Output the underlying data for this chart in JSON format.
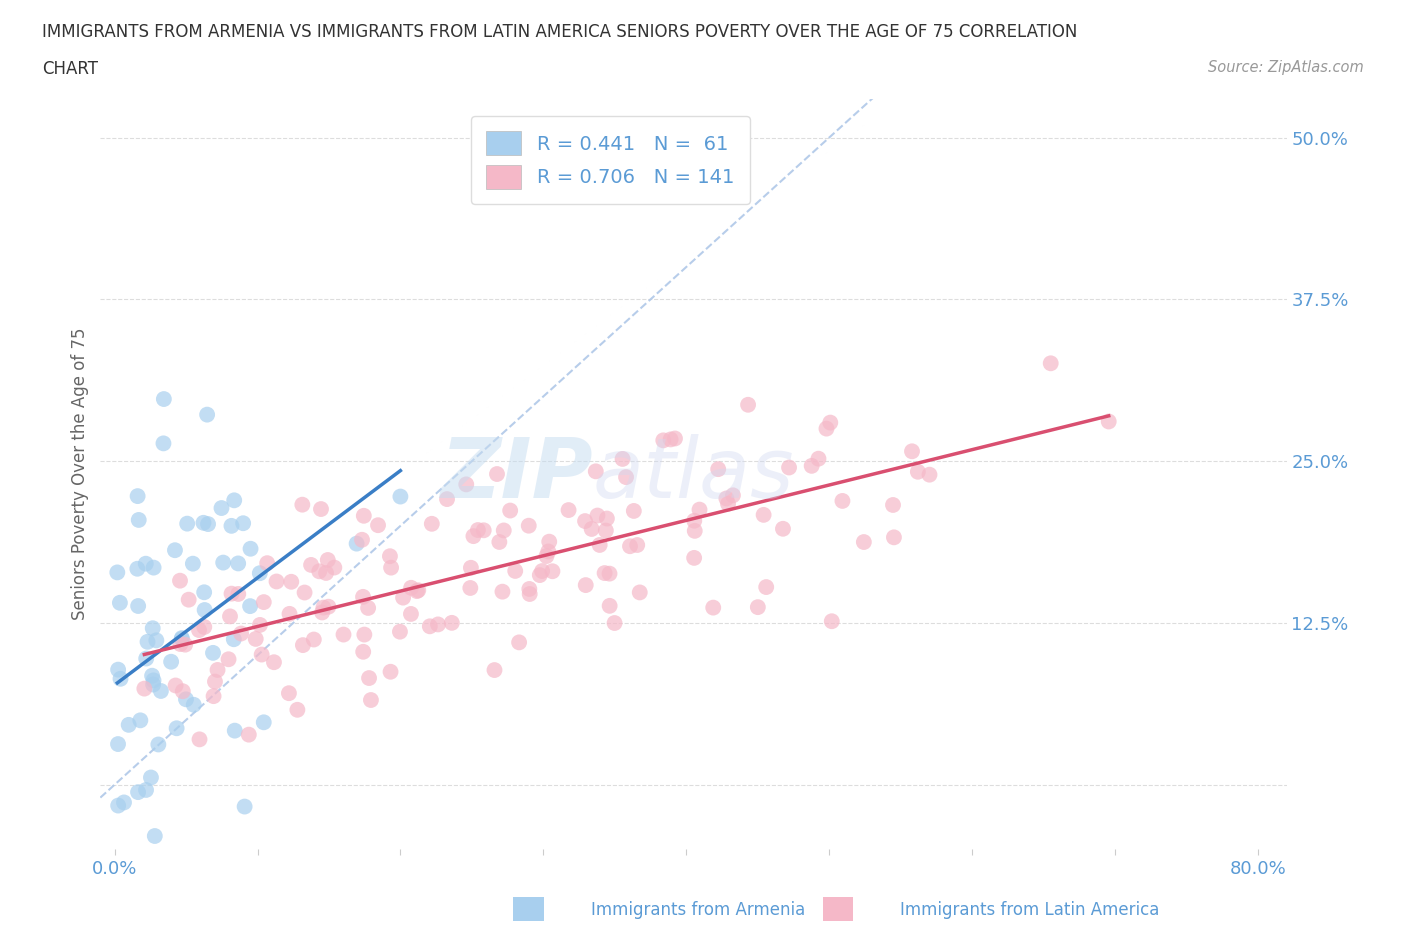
{
  "title_line1": "IMMIGRANTS FROM ARMENIA VS IMMIGRANTS FROM LATIN AMERICA SENIORS POVERTY OVER THE AGE OF 75 CORRELATION",
  "title_line2": "CHART",
  "source_text": "Source: ZipAtlas.com",
  "ylabel": "Seniors Poverty Over the Age of 75",
  "legend_entries": [
    {
      "label": "Immigrants from Armenia",
      "R": "0.441",
      "N": "61",
      "color": "#A8CFEE"
    },
    {
      "label": "Immigrants from Latin America",
      "R": "0.706",
      "N": "141",
      "color": "#F5B8C8"
    }
  ],
  "xmin": -0.01,
  "xmax": 0.82,
  "ymin": -0.05,
  "ymax": 0.53,
  "yticks": [
    0.0,
    0.125,
    0.25,
    0.375,
    0.5
  ],
  "ytick_labels": [
    "",
    "12.5%",
    "25.0%",
    "37.5%",
    "50.0%"
  ],
  "xticks": [
    0.0,
    0.1,
    0.2,
    0.3,
    0.4,
    0.5,
    0.6,
    0.7,
    0.8
  ],
  "xtick_labels": [
    "0.0%",
    "",
    "",
    "",
    "",
    "",
    "",
    "",
    "80.0%"
  ],
  "watermark_top": "ZIP",
  "watermark_bot": "atlas",
  "armenia_color": "#A8CFEE",
  "latin_color": "#F5B8C8",
  "armenia_trend_color": "#3A7EC6",
  "latin_trend_color": "#D94F70",
  "diagonal_color": "#B0C8E8",
  "background_color": "#FFFFFF",
  "grid_color": "#DDDDDD",
  "tick_label_color": "#5B9BD5",
  "title_color": "#333333",
  "armenia_R": 0.441,
  "armenia_N": 61,
  "latin_R": 0.706,
  "latin_N": 141
}
